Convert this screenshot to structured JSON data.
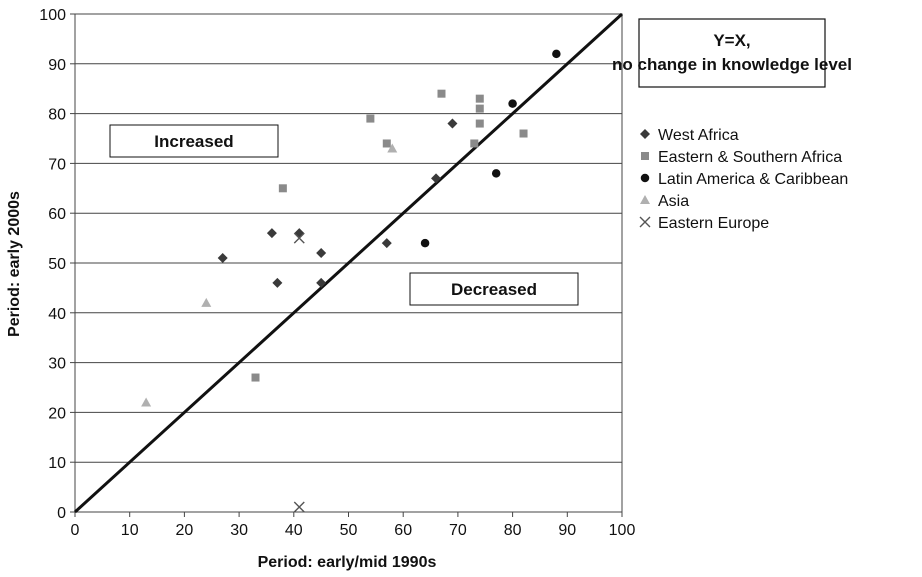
{
  "chart_data": {
    "type": "scatter",
    "xlabel": "Period: early/mid 1990s",
    "ylabel": "Period: early 2000s",
    "xlim": [
      0,
      100
    ],
    "ylim": [
      0,
      100
    ],
    "xticks": [
      0,
      10,
      20,
      30,
      40,
      50,
      60,
      70,
      80,
      90,
      100
    ],
    "yticks": [
      0,
      10,
      20,
      30,
      40,
      50,
      60,
      70,
      80,
      90,
      100
    ],
    "grid": "horizontal",
    "legend_position": "right",
    "reference_line": {
      "label": "Y=X, no change in knowledge level"
    },
    "annotations": {
      "above": "Increased",
      "below": "Decreased"
    },
    "series": [
      {
        "name": "West Africa",
        "marker": "diamond",
        "color": "#3a3a3a",
        "x": [
          27,
          36,
          37,
          41,
          45,
          45,
          57,
          66,
          69
        ],
        "y": [
          51,
          56,
          46,
          56,
          52,
          46,
          54,
          67,
          78
        ]
      },
      {
        "name": "Eastern & Southern Africa",
        "marker": "square",
        "color": "#8a8a8a",
        "x": [
          33,
          38,
          54,
          57,
          67,
          73,
          74,
          74,
          74,
          82
        ],
        "y": [
          27,
          65,
          79,
          74,
          84,
          74,
          83,
          81,
          78,
          76
        ]
      },
      {
        "name": "Latin America & Caribbean",
        "marker": "circle",
        "color": "#111111",
        "x": [
          64,
          77,
          80,
          88
        ],
        "y": [
          54,
          68,
          82,
          92
        ]
      },
      {
        "name": "Asia",
        "marker": "triangle",
        "color": "#b0b0b0",
        "x": [
          13,
          24,
          58
        ],
        "y": [
          22,
          42,
          73
        ]
      },
      {
        "name": "Eastern Europe",
        "marker": "x",
        "color": "#555555",
        "x": [
          41,
          41
        ],
        "y": [
          55,
          1
        ]
      }
    ]
  }
}
